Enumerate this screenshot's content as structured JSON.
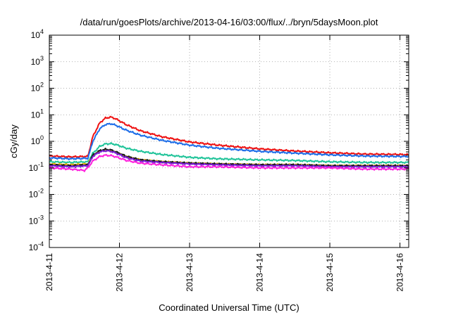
{
  "chart_data": {
    "type": "line",
    "title": "/data/run/goesPlots/archive/2013-04-16/03:00/flux/../bryn/5daysMoon.plot",
    "xlabel": "Coordinated Universal Time (UTC)",
    "ylabel": "cGy/day",
    "y_scale": "log",
    "ylim": [
      0.0001,
      10000
    ],
    "xlim": [
      0,
      5.125
    ],
    "grid": true,
    "legend": "none",
    "x_ticks": [
      {
        "value": 0,
        "label": "2013-4-11"
      },
      {
        "value": 1,
        "label": "2013-4-12"
      },
      {
        "value": 2,
        "label": "2013-4-13"
      },
      {
        "value": 3,
        "label": "2013-4-14"
      },
      {
        "value": 4,
        "label": "2013-4-15"
      },
      {
        "value": 5,
        "label": "2013-4-16"
      }
    ],
    "y_ticks": [
      {
        "value": 0.0001,
        "base": "10",
        "exp": "-4"
      },
      {
        "value": 0.001,
        "base": "10",
        "exp": "-3"
      },
      {
        "value": 0.01,
        "base": "10",
        "exp": "-2"
      },
      {
        "value": 0.1,
        "base": "10",
        "exp": "-1"
      },
      {
        "value": 1,
        "base": "10",
        "exp": "0"
      },
      {
        "value": 10,
        "base": "10",
        "exp": "1"
      },
      {
        "value": 100,
        "base": "10",
        "exp": "2"
      },
      {
        "value": 1000,
        "base": "10",
        "exp": "3"
      },
      {
        "value": 10000,
        "base": "10",
        "exp": "4"
      }
    ],
    "series": [
      {
        "color": "#ee1111",
        "x": [
          0,
          0.3,
          0.55,
          0.62,
          0.72,
          0.8,
          0.88,
          0.95,
          1.1,
          1.3,
          1.6,
          2.0,
          2.4,
          3.0,
          3.5,
          4.0,
          4.5,
          5.0,
          5.125
        ],
        "y": [
          0.28,
          0.26,
          0.27,
          1.5,
          5.0,
          7.5,
          8.2,
          7.0,
          4.2,
          2.5,
          1.5,
          0.95,
          0.72,
          0.52,
          0.43,
          0.37,
          0.33,
          0.32,
          0.31
        ]
      },
      {
        "color": "#1e6ee8",
        "x": [
          0,
          0.3,
          0.55,
          0.62,
          0.72,
          0.8,
          0.88,
          0.95,
          1.1,
          1.3,
          1.6,
          2.0,
          2.4,
          3.0,
          3.5,
          4.0,
          4.5,
          5.0,
          5.125
        ],
        "y": [
          0.24,
          0.22,
          0.23,
          1.0,
          3.0,
          4.3,
          4.6,
          4.0,
          2.6,
          1.7,
          1.1,
          0.72,
          0.55,
          0.42,
          0.36,
          0.31,
          0.28,
          0.27,
          0.27
        ]
      },
      {
        "color": "#22c49a",
        "x": [
          0,
          0.3,
          0.55,
          0.62,
          0.72,
          0.8,
          0.88,
          0.95,
          1.1,
          1.3,
          1.6,
          2.0,
          2.4,
          3.0,
          3.5,
          4.0,
          4.5,
          5.0,
          5.125
        ],
        "y": [
          0.17,
          0.16,
          0.17,
          0.35,
          0.65,
          0.8,
          0.82,
          0.75,
          0.55,
          0.42,
          0.32,
          0.25,
          0.22,
          0.2,
          0.19,
          0.17,
          0.16,
          0.16,
          0.16
        ]
      },
      {
        "color": "#e8b400",
        "x": [
          0,
          0.3,
          0.55,
          0.62,
          0.72,
          0.8,
          0.88,
          0.95,
          1.1,
          1.3,
          1.6,
          2.0,
          2.4,
          3.0,
          3.5,
          4.0,
          4.5,
          5.0,
          5.125
        ],
        "y": [
          0.14,
          0.13,
          0.14,
          0.28,
          0.42,
          0.46,
          0.44,
          0.38,
          0.26,
          0.2,
          0.17,
          0.15,
          0.14,
          0.13,
          0.13,
          0.12,
          0.12,
          0.12,
          0.12
        ]
      },
      {
        "color": "#1a1a1a",
        "x": [
          0,
          0.3,
          0.55,
          0.62,
          0.72,
          0.8,
          0.88,
          0.95,
          1.1,
          1.3,
          1.6,
          2.0,
          2.4,
          3.0,
          3.5,
          4.0,
          4.5,
          5.0,
          5.125
        ],
        "y": [
          0.13,
          0.12,
          0.13,
          0.3,
          0.45,
          0.5,
          0.47,
          0.4,
          0.27,
          0.2,
          0.17,
          0.15,
          0.14,
          0.13,
          0.13,
          0.12,
          0.12,
          0.12,
          0.12
        ]
      },
      {
        "color": "#7a1fd6",
        "x": [
          0,
          0.3,
          0.55,
          0.62,
          0.72,
          0.8,
          0.88,
          0.95,
          1.1,
          1.3,
          1.6,
          2.0,
          2.4,
          3.0,
          3.5,
          4.0,
          4.5,
          5.0,
          5.125
        ],
        "y": [
          0.12,
          0.11,
          0.12,
          0.27,
          0.4,
          0.44,
          0.42,
          0.36,
          0.24,
          0.18,
          0.16,
          0.14,
          0.13,
          0.12,
          0.12,
          0.11,
          0.11,
          0.11,
          0.11
        ]
      },
      {
        "color": "#ff22dd",
        "x": [
          0,
          0.3,
          0.5,
          0.55,
          0.62,
          0.72,
          0.8,
          0.88,
          0.95,
          1.1,
          1.3,
          1.6,
          2.0,
          2.4,
          3.0,
          3.5,
          4.0,
          4.5,
          5.0,
          5.125
        ],
        "y": [
          0.1,
          0.09,
          0.08,
          0.1,
          0.18,
          0.27,
          0.3,
          0.29,
          0.26,
          0.19,
          0.15,
          0.13,
          0.11,
          0.11,
          0.1,
          0.1,
          0.1,
          0.09,
          0.09,
          0.09
        ]
      }
    ]
  }
}
